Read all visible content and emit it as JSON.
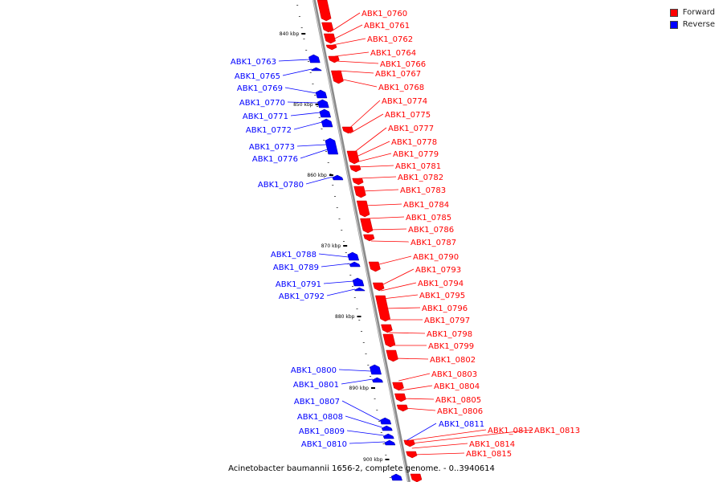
{
  "legend": {
    "forward_label": "Forward",
    "reverse_label": "Reverse",
    "forward_color": "#ff0000",
    "reverse_color": "#0000ff"
  },
  "caption": "Acinetobacter baumannii 1656-2, complete genome. - 0..3940614",
  "ticks": [
    "840 kbp",
    "850 kbp",
    "860 kbp",
    "870 kbp",
    "880 kbp",
    "890 kbp",
    "900 kbp"
  ],
  "forward_genes": [
    "ABK1_0760",
    "ABK1_0761",
    "ABK1_0762",
    "ABK1_0764",
    "ABK1_0766",
    "ABK1_0767",
    "ABK1_0768",
    "ABK1_0774",
    "ABK1_0775",
    "ABK1_0777",
    "ABK1_0778",
    "ABK1_0779",
    "ABK1_0781",
    "ABK1_0782",
    "ABK1_0783",
    "ABK1_0784",
    "ABK1_0785",
    "ABK1_0786",
    "ABK1_0787",
    "ABK1_0790",
    "ABK1_0793",
    "ABK1_0794",
    "ABK1_0795",
    "ABK1_0796",
    "ABK1_0797",
    "ABK1_0798",
    "ABK1_0799",
    "ABK1_0802",
    "ABK1_0803",
    "ABK1_0804",
    "ABK1_0805",
    "ABK1_0806",
    "ABK1_0812",
    "ABK1_0813",
    "ABK1_0814",
    "ABK1_0815"
  ],
  "reverse_genes": [
    "ABK1_0763",
    "ABK1_0765",
    "ABK1_0769",
    "ABK1_0770",
    "ABK1_0771",
    "ABK1_0772",
    "ABK1_0773",
    "ABK1_0776",
    "ABK1_0780",
    "ABK1_0788",
    "ABK1_0789",
    "ABK1_0791",
    "ABK1_0792",
    "ABK1_0800",
    "ABK1_0801",
    "ABK1_0807",
    "ABK1_0808",
    "ABK1_0809",
    "ABK1_0810",
    "ABK1_0811"
  ]
}
